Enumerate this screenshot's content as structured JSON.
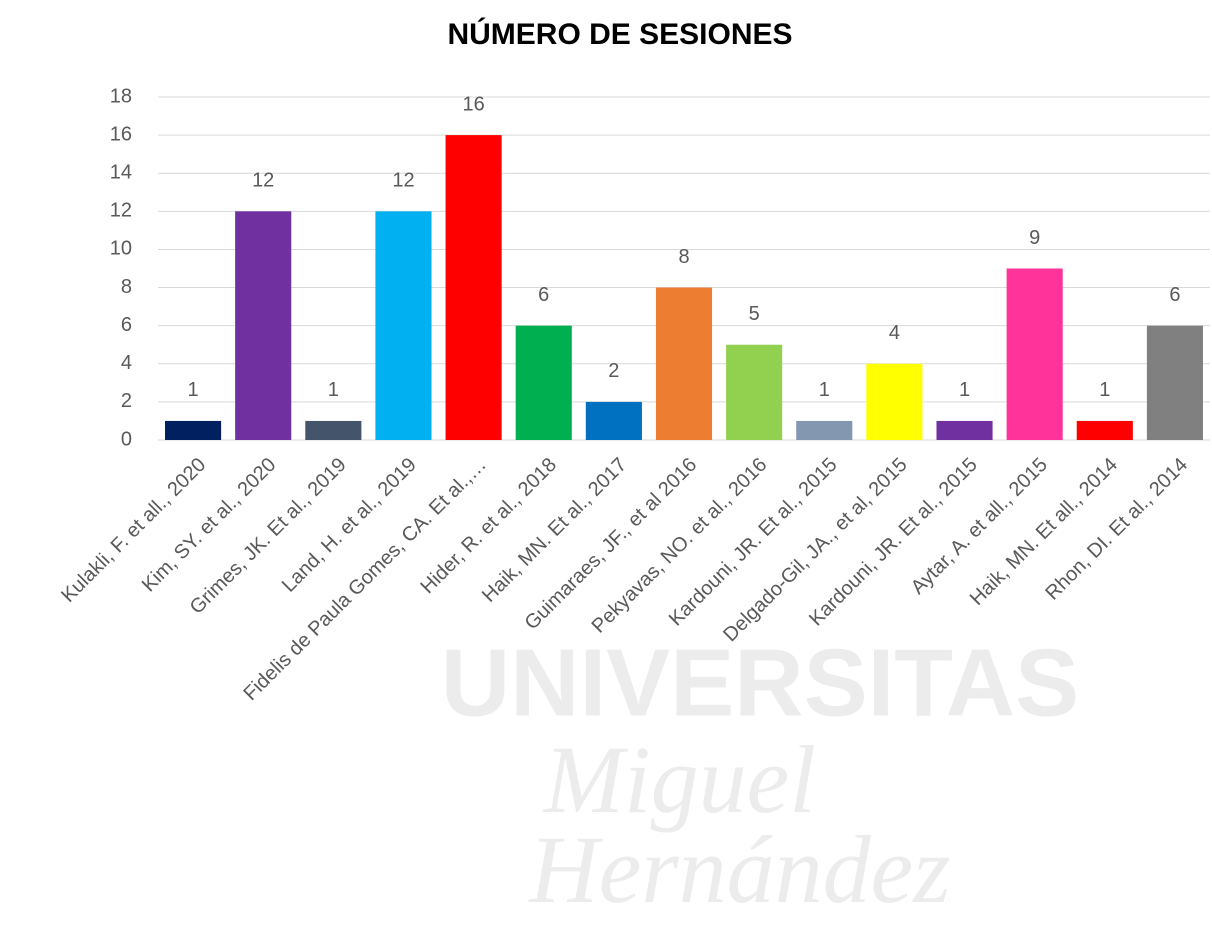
{
  "chart_data": {
    "type": "bar",
    "title": "NÚMERO DE SESIONES",
    "categories": [
      "Kulakli, F. et all., 2020",
      "Kim, SY. et al., 2020",
      "Grimes, JK. Et al., 2019",
      "Land, H. et al., 2019",
      "Fidelis de Paula Gomes, CA. Et al.,…",
      "Hider, R. et al., 2018",
      "Haik, MN. Et al., 2017",
      "Guimaraes, JF., et al 2016",
      "Pekyavas, NO. et al., 2016",
      "Kardouni, JR. Et al., 2015",
      "Delgado-Gil, JA., et al, 2015",
      "Kardouni, JR. Et al., 2015",
      "Aytar, A. et all., 2015",
      "Haik, MN. Et all., 2014",
      "Rhon, DI. Et al., 2014"
    ],
    "values": [
      1,
      12,
      1,
      12,
      16,
      6,
      2,
      8,
      5,
      1,
      4,
      1,
      9,
      1,
      6
    ],
    "colors": [
      "#002060",
      "#7030a0",
      "#44546a",
      "#00b0f0",
      "#ff0000",
      "#00b050",
      "#0070c0",
      "#ed7d31",
      "#92d050",
      "#8497b0",
      "#ffff00",
      "#7030a0",
      "#ff3399",
      "#ff0000",
      "#808080"
    ],
    "ylim": [
      0,
      18
    ],
    "yticks": [
      0,
      2,
      4,
      6,
      8,
      10,
      12,
      14,
      16,
      18
    ],
    "grid": true,
    "watermark": [
      "UNIVERSITAS",
      "Miguel",
      "Hernández"
    ]
  }
}
